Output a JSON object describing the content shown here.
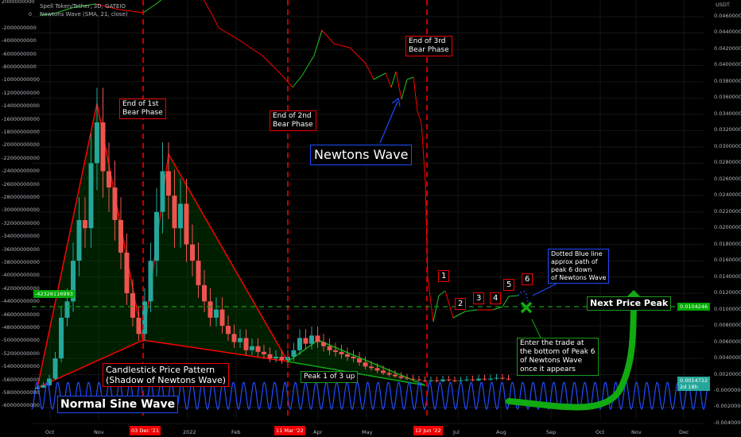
{
  "legend": {
    "title": "Spell Token/Tether, 3D, GATEIO",
    "indicator": "Newtons Wave (SMA, 21, close)"
  },
  "chart_data": {
    "type": "candlestick",
    "left_axis": {
      "ticks": [
        "2000000000",
        "0",
        "-2000000000",
        "-4000000000",
        "-6000000000",
        "-8000000000",
        "-10000000000",
        "-12000000000",
        "-14000000000",
        "-16000000000",
        "-18000000000",
        "-20000000000",
        "-22000000000",
        "-24000000000",
        "-26000000000",
        "-28000000000",
        "-30000000000",
        "-32000000000",
        "-34000000000",
        "-36000000000",
        "-38000000000",
        "-40000000000",
        "-42000000000",
        "-44000000000",
        "-46000000000",
        "-48000000000",
        "-50000000000",
        "-52000000000",
        "-54000000000",
        "-56000000000",
        "-58000000000",
        "-60000000000"
      ],
      "marker": "-42326116993"
    },
    "right_axis": {
      "unit": "USDT",
      "ticks": [
        "0.0460000",
        "0.0440000",
        "0.0420000",
        "0.0400000",
        "0.0380000",
        "0.0360000",
        "0.0340000",
        "0.0320000",
        "0.0300000",
        "0.0280000",
        "0.0260000",
        "0.0240000",
        "0.0220000",
        "0.0200000",
        "0.0180000",
        "0.0160000",
        "0.0140000",
        "0.0120000",
        "0.0100000",
        "0.0080000",
        "0.0060000",
        "0.0040000",
        "0.0020000",
        "-0.0000000",
        "-0.0020000",
        "-0.0040000"
      ],
      "ylim": [
        -0.004,
        0.046
      ],
      "price_marker": "0.0104246",
      "last_price": "0.0014722",
      "countdown": "2d 18h"
    },
    "x_ticks": [
      "Oct",
      "Nov",
      "2022",
      "Feb",
      "Apr",
      "May",
      "Jul",
      "Aug",
      "Sep",
      "Oct",
      "Nov",
      "Dec"
    ],
    "date_markers": [
      "03 Dec '21",
      "11 Mar '22",
      "12 Jun '22"
    ],
    "closes": [
      0.0004,
      0.0007,
      0.0015,
      0.004,
      0.009,
      0.011,
      0.016,
      0.021,
      0.02,
      0.028,
      0.033,
      0.027,
      0.025,
      0.021,
      0.017,
      0.012,
      0.009,
      0.007,
      0.011,
      0.016,
      0.022,
      0.027,
      0.024,
      0.02,
      0.023,
      0.018,
      0.016,
      0.013,
      0.011,
      0.009,
      0.01,
      0.008,
      0.007,
      0.006,
      0.0065,
      0.005,
      0.0055,
      0.0048,
      0.0045,
      0.004,
      0.0042,
      0.0038,
      0.0042,
      0.005,
      0.0065,
      0.0058,
      0.0068,
      0.006,
      0.0055,
      0.005,
      0.0048,
      0.0045,
      0.0042,
      0.004,
      0.0035,
      0.003,
      0.0028,
      0.0025,
      0.0022,
      0.002,
      0.0018,
      0.0016,
      0.0015,
      0.0014,
      0.0013,
      0.0012,
      0.0013,
      0.0012,
      0.0014,
      0.0013,
      0.0012,
      0.0013,
      0.0014,
      0.0013,
      0.0015,
      0.0014,
      0.0015,
      0.0016,
      0.0015,
      0.00147
    ],
    "colors": {
      "up": "#26a69a",
      "down": "#ef5350",
      "wave_up": "#22c322",
      "wave_down": "#ff0000",
      "sine": "#1f4bff",
      "marker": "#ff0000",
      "price_line": "#1a9a1a"
    }
  },
  "annotations": {
    "bear1": [
      "End of 1st",
      "Bear Phase"
    ],
    "bear2": [
      "End of 2nd",
      "Bear Phase"
    ],
    "bear3": [
      "End of 3rd",
      "Bear Phase"
    ],
    "newtons": "Newtons Wave",
    "dotted": [
      "Dotted Blue line",
      "approx path of",
      "peak 6 down",
      "of Newtons Wave"
    ],
    "next_peak": "Next Price Peak",
    "enter": [
      "Enter the trade at",
      "the bottom of Peak 6",
      "of Newtons Wave",
      "once it appears"
    ],
    "candle": [
      "Candlestick Price Pattern",
      "(Shadow of Newtons Wave)"
    ],
    "peak1": "Peak 1 of 3 up",
    "sine": "Normal Sine Wave",
    "peaks": [
      "1",
      "2",
      "3",
      "4",
      "5",
      "6"
    ]
  }
}
